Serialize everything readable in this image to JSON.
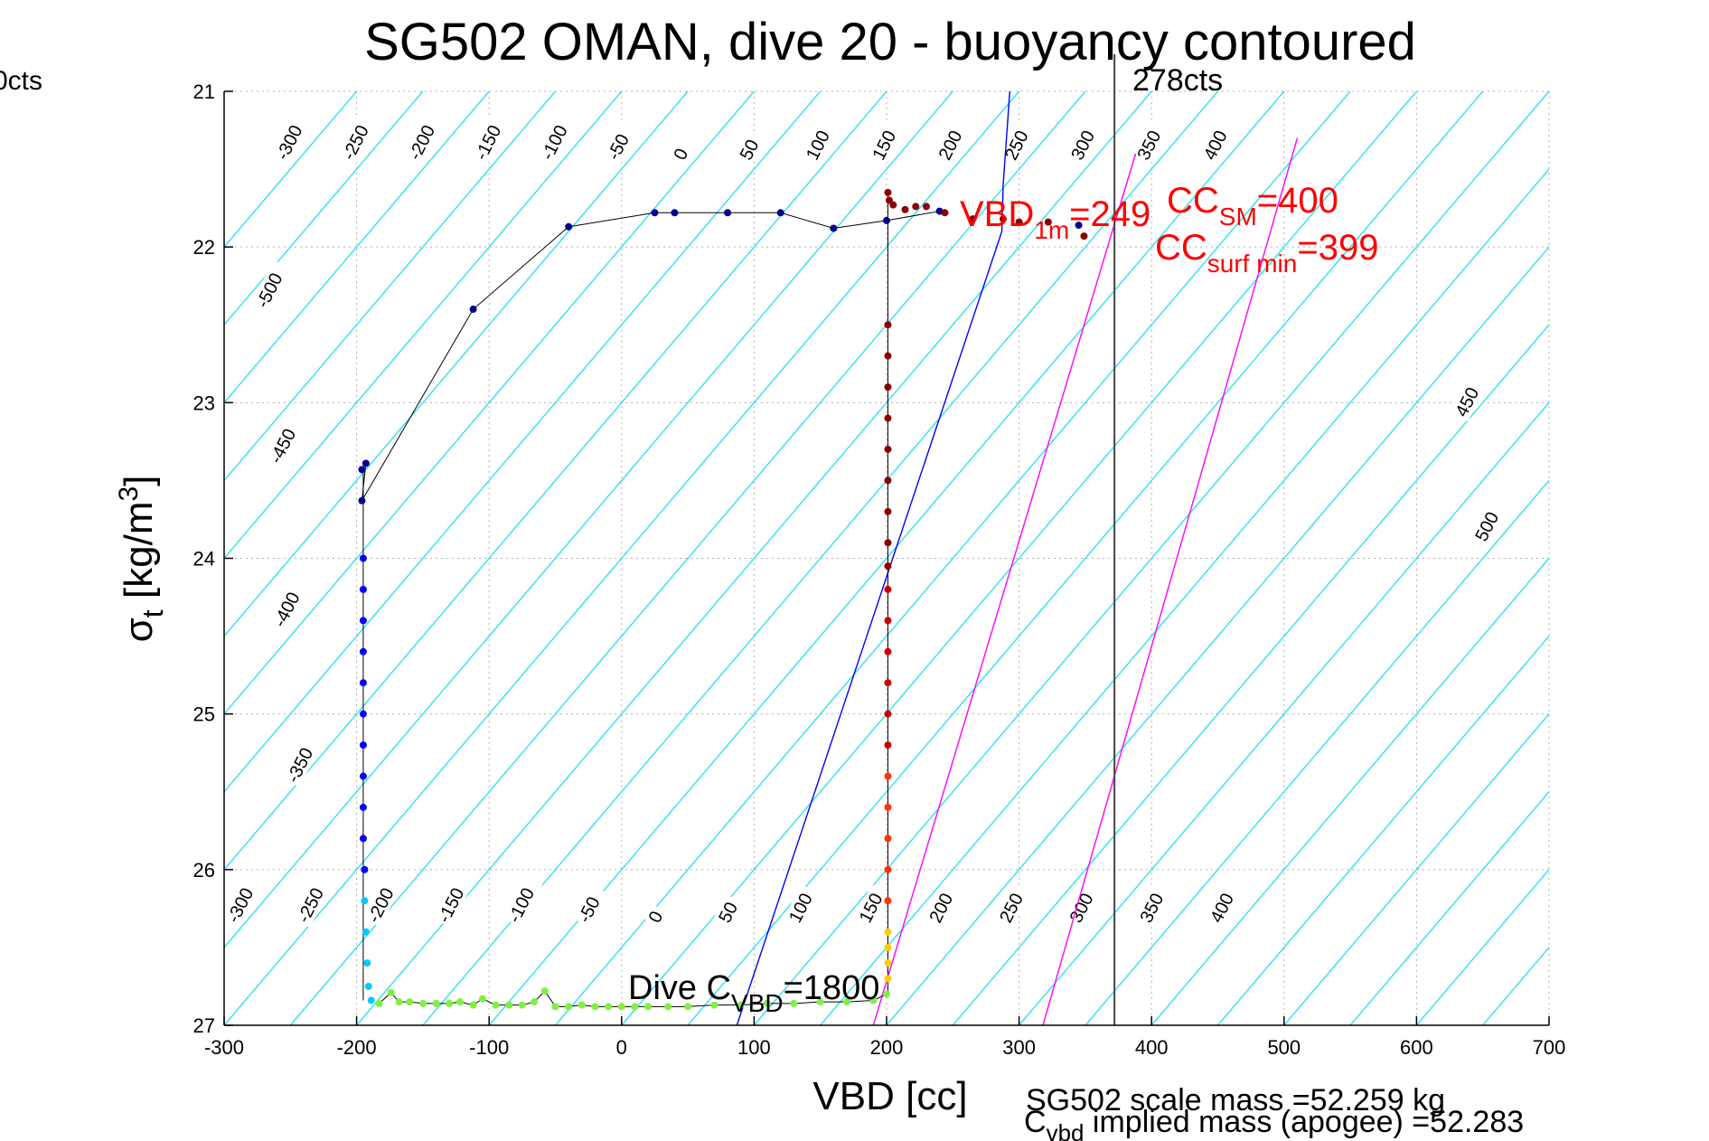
{
  "chart_data": {
    "type": "scatter",
    "title": "SG502 OMAN, dive 20 - buoyancy contoured",
    "xlabel": "VBD [cc]",
    "ylabel_main": "σ",
    "ylabel_sub": "t",
    "ylabel_rest": " [kg/m",
    "ylabel_sup": "3",
    "ylabel_close": "]",
    "xlim": [
      -300,
      700
    ],
    "ylim": [
      27,
      21
    ],
    "y_reversed": true,
    "grid": true,
    "x_ticks": [
      -300,
      -200,
      -100,
      0,
      100,
      200,
      300,
      400,
      500,
      600,
      700
    ],
    "y_ticks": [
      21,
      22,
      23,
      24,
      25,
      26,
      27
    ],
    "contours": {
      "slope_cc_per_kgm3": 100,
      "top_labels": [
        "-300",
        "-250",
        "-200",
        "-150",
        "-100",
        "-50",
        "0",
        "50",
        "100",
        "150",
        "200",
        "250",
        "300",
        "350",
        "400"
      ],
      "left_labels": [
        "-500",
        "-450",
        "-400",
        "-350"
      ],
      "right_labels": [
        "450",
        "500"
      ],
      "bottom_labels": [
        "-300",
        "-250",
        "-200",
        "-150",
        "-100",
        "-50",
        "0",
        "50",
        "100",
        "150",
        "200",
        "250",
        "300",
        "350",
        "400"
      ]
    },
    "vertical_line": {
      "x": 372,
      "label": "278cts"
    },
    "left_edge_label": "0cts",
    "reference_lines": [
      {
        "name": "neutral",
        "color": "#0000ff",
        "points": [
          [
            87,
            27
          ],
          [
            287,
            21.9
          ],
          [
            288,
            21.6
          ],
          [
            293,
            21
          ]
        ]
      },
      {
        "name": "magenta-1",
        "color": "#ff00ff",
        "points": [
          [
            190,
            27
          ],
          [
            388,
            21.4
          ]
        ]
      },
      {
        "name": "magenta-2",
        "color": "#ff00ff",
        "points": [
          [
            318,
            27
          ],
          [
            510,
            21.3
          ]
        ]
      }
    ],
    "series": [
      {
        "color": "#00008b",
        "points": [
          [
            -196,
            23.43
          ],
          [
            -193,
            23.39
          ],
          [
            -196,
            23.63
          ],
          [
            -112,
            22.4
          ],
          [
            -40,
            21.87
          ],
          [
            25,
            21.78
          ],
          [
            40,
            21.78
          ],
          [
            80,
            21.78
          ],
          [
            120,
            21.78
          ],
          [
            160,
            21.88
          ],
          [
            200,
            21.83
          ],
          [
            240,
            21.77
          ],
          [
            345,
            21.86
          ]
        ]
      },
      {
        "color": "#0000ff",
        "points": [
          [
            -195,
            24.0
          ],
          [
            -195,
            24.2
          ],
          [
            -195,
            24.4
          ],
          [
            -195,
            24.6
          ],
          [
            -195,
            24.8
          ],
          [
            -195,
            25.0
          ],
          [
            -195,
            25.2
          ],
          [
            -195,
            25.4
          ],
          [
            -195,
            25.6
          ],
          [
            -195,
            25.8
          ],
          [
            -194,
            26.0
          ]
        ]
      },
      {
        "color": "#00ccff",
        "points": [
          [
            -194,
            26.2
          ],
          [
            -193,
            26.4
          ],
          [
            -192,
            26.6
          ],
          [
            -191,
            26.75
          ],
          [
            -189,
            26.84
          ]
        ]
      },
      {
        "color": "#80f040",
        "points": [
          [
            -183,
            26.86
          ],
          [
            -174,
            26.79
          ],
          [
            -168,
            26.85
          ],
          [
            -160,
            26.85
          ],
          [
            -150,
            26.86
          ],
          [
            -140,
            26.86
          ],
          [
            -130,
            26.86
          ],
          [
            -122,
            26.85
          ],
          [
            -112,
            26.87
          ],
          [
            -105,
            26.83
          ],
          [
            -95,
            26.87
          ],
          [
            -85,
            26.87
          ],
          [
            -75,
            26.87
          ],
          [
            -66,
            26.85
          ],
          [
            -58,
            26.78
          ],
          [
            -50,
            26.88
          ],
          [
            -40,
            26.88
          ],
          [
            -30,
            26.87
          ],
          [
            -20,
            26.88
          ],
          [
            -10,
            26.88
          ],
          [
            0,
            26.88
          ],
          [
            10,
            26.88
          ],
          [
            20,
            26.88
          ],
          [
            35,
            26.88
          ],
          [
            50,
            26.88
          ],
          [
            70,
            26.87
          ],
          [
            90,
            26.87
          ],
          [
            110,
            26.86
          ],
          [
            130,
            26.86
          ],
          [
            150,
            26.85
          ],
          [
            170,
            26.85
          ],
          [
            190,
            26.84
          ],
          [
            200,
            26.8
          ]
        ]
      },
      {
        "color": "#ffcc00",
        "points": [
          [
            201,
            26.4
          ],
          [
            201,
            26.5
          ],
          [
            201,
            26.6
          ],
          [
            201,
            26.7
          ]
        ]
      },
      {
        "color": "#ff3300",
        "points": [
          [
            201,
            25.4
          ],
          [
            201,
            25.6
          ],
          [
            201,
            25.8
          ],
          [
            201,
            26.0
          ],
          [
            201,
            26.2
          ]
        ]
      },
      {
        "color": "#cc0000",
        "points": [
          [
            201,
            24.2
          ],
          [
            201,
            24.4
          ],
          [
            201,
            24.6
          ],
          [
            201,
            24.8
          ],
          [
            201,
            25.0
          ],
          [
            201,
            25.2
          ]
        ]
      },
      {
        "color": "#8b0000",
        "points": [
          [
            201,
            21.65
          ],
          [
            202,
            21.7
          ],
          [
            205,
            21.73
          ],
          [
            214,
            21.76
          ],
          [
            222,
            21.74
          ],
          [
            230,
            21.74
          ],
          [
            244,
            21.78
          ],
          [
            265,
            21.82
          ],
          [
            288,
            21.82
          ],
          [
            300,
            21.84
          ],
          [
            322,
            21.84
          ],
          [
            349,
            21.93
          ],
          [
            201,
            22.5
          ],
          [
            201,
            22.7
          ],
          [
            201,
            22.9
          ],
          [
            201,
            23.1
          ],
          [
            201,
            23.3
          ],
          [
            201,
            23.5
          ],
          [
            201,
            23.7
          ],
          [
            201,
            23.9
          ],
          [
            201,
            24.05
          ]
        ]
      }
    ],
    "annotations": {
      "vbd_1m": {
        "main": "VBD",
        "sub": "1m",
        "rest": "=249"
      },
      "cc_sm": {
        "main": "CC",
        "sub": "SM",
        "rest": "=400"
      },
      "cc_surf_min": {
        "main": "CC",
        "sub": "surf min",
        "rest": "=399"
      },
      "dive_cvbd": {
        "main": "Dive C",
        "sub": "VBD",
        "rest": "=1800"
      },
      "scale_mass": "SG502 scale mass =52.259 kg",
      "implied_mass_main": "C",
      "implied_mass_sub": "vbd",
      "implied_mass_rest": " implied mass (apogee) =52.283"
    }
  }
}
